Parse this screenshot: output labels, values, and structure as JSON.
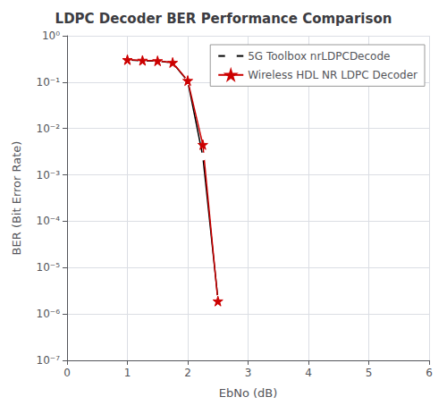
{
  "chart_data": {
    "type": "line",
    "title": "LDPC Decoder BER Performance Comparison",
    "xlabel": "EbNo (dB)",
    "ylabel": "BER (Bit Error Rate)",
    "log": "y",
    "x": [
      1.0,
      1.25,
      1.5,
      1.75,
      2.0,
      2.25,
      2.5
    ],
    "series": [
      {
        "name": "5G Toolbox nrLDPCDecode",
        "color": "#000000",
        "marker": "circle",
        "values": [
          0.3,
          0.29,
          0.285,
          0.26,
          0.105,
          0.0025,
          2.1e-06
        ]
      },
      {
        "name": "Wireless HDL NR LDPC Decoder",
        "color": "#cc0000",
        "marker": "star",
        "values": [
          0.305,
          0.295,
          0.288,
          0.265,
          0.108,
          0.0045,
          1.9e-06
        ]
      }
    ],
    "xlim": [
      0,
      6
    ],
    "xticks": [
      0,
      1,
      2,
      3,
      4,
      5,
      6
    ],
    "ylim": [
      1e-07,
      1
    ],
    "yticks": [
      {
        "value": 1e-07,
        "label": "10⁻⁷"
      },
      {
        "value": 1e-06,
        "label": "10⁻⁶"
      },
      {
        "value": 1e-05,
        "label": "10⁻⁵"
      },
      {
        "value": 0.0001,
        "label": "10⁻⁴"
      },
      {
        "value": 0.001,
        "label": "10⁻³"
      },
      {
        "value": 0.01,
        "label": "10⁻²"
      },
      {
        "value": 0.1,
        "label": "10⁻¹"
      },
      {
        "value": 1,
        "label": "10⁰"
      }
    ],
    "grid": true,
    "legend": "upper right"
  }
}
